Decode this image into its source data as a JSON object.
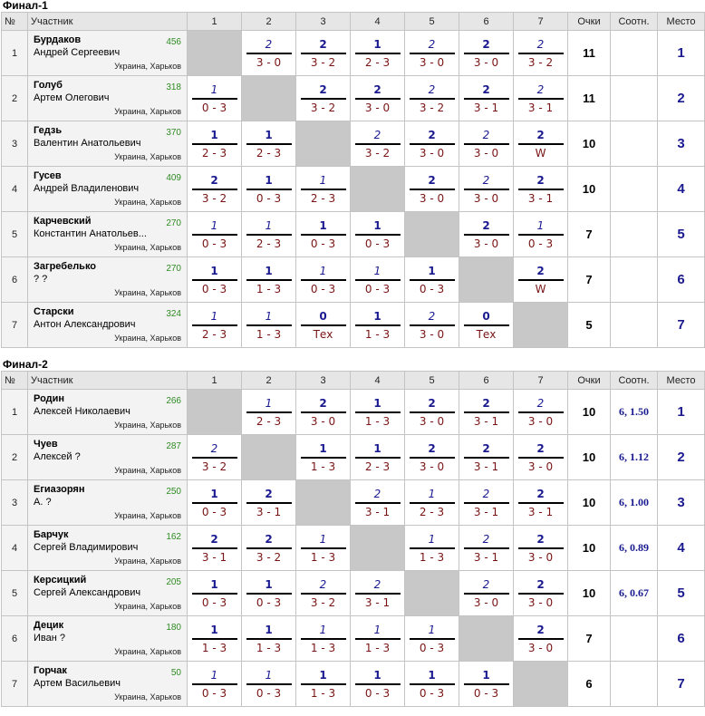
{
  "headers": {
    "num": "№",
    "player": "Участник",
    "cols": [
      "1",
      "2",
      "3",
      "4",
      "5",
      "6",
      "7"
    ],
    "points": "Очки",
    "ratio": "Соотн.",
    "place": "Место"
  },
  "groups": [
    {
      "title": "Финал-1",
      "rows": [
        {
          "num": "1",
          "last": "Бурдаков",
          "first": "Андрей Сергеевич",
          "rating": "456",
          "city": "Украина, Харьков",
          "points": "11",
          "ratio": "",
          "place": "1",
          "cells": [
            null,
            {
              "p": "2",
              "r": "3 - 0",
              "s": "i"
            },
            {
              "p": "2",
              "r": "3 - 2",
              "s": "b"
            },
            {
              "p": "1",
              "r": "2 - 3",
              "s": "b"
            },
            {
              "p": "2",
              "r": "3 - 0",
              "s": "i"
            },
            {
              "p": "2",
              "r": "3 - 0",
              "s": "b"
            },
            {
              "p": "2",
              "r": "3 - 2",
              "s": "i"
            }
          ]
        },
        {
          "num": "2",
          "last": "Голуб",
          "first": "Артем Олегович",
          "rating": "318",
          "city": "Украина, Харьков",
          "points": "11",
          "ratio": "",
          "place": "2",
          "cells": [
            {
              "p": "1",
              "r": "0 - 3",
              "s": "i"
            },
            null,
            {
              "p": "2",
              "r": "3 - 2",
              "s": "b"
            },
            {
              "p": "2",
              "r": "3 - 0",
              "s": "b"
            },
            {
              "p": "2",
              "r": "3 - 2",
              "s": "i"
            },
            {
              "p": "2",
              "r": "3 - 1",
              "s": "b"
            },
            {
              "p": "2",
              "r": "3 - 1",
              "s": "i"
            }
          ]
        },
        {
          "num": "3",
          "last": "Гедзь",
          "first": "Валентин Анатольевич",
          "rating": "370",
          "city": "Украина, Харьков",
          "points": "10",
          "ratio": "",
          "place": "3",
          "cells": [
            {
              "p": "1",
              "r": "2 - 3",
              "s": "b"
            },
            {
              "p": "1",
              "r": "2 - 3",
              "s": "b"
            },
            null,
            {
              "p": "2",
              "r": "3 - 2",
              "s": "i"
            },
            {
              "p": "2",
              "r": "3 - 0",
              "s": "b"
            },
            {
              "p": "2",
              "r": "3 - 0",
              "s": "i"
            },
            {
              "p": "2",
              "r": "W",
              "s": "b"
            }
          ]
        },
        {
          "num": "4",
          "last": "Гусев",
          "first": "Андрей Владиленович",
          "rating": "409",
          "city": "Украина, Харьков",
          "points": "10",
          "ratio": "",
          "place": "4",
          "cells": [
            {
              "p": "2",
              "r": "3 - 2",
              "s": "b"
            },
            {
              "p": "1",
              "r": "0 - 3",
              "s": "b"
            },
            {
              "p": "1",
              "r": "2 - 3",
              "s": "i"
            },
            null,
            {
              "p": "2",
              "r": "3 - 0",
              "s": "b"
            },
            {
              "p": "2",
              "r": "3 - 0",
              "s": "i"
            },
            {
              "p": "2",
              "r": "3 - 1",
              "s": "b"
            }
          ]
        },
        {
          "num": "5",
          "last": "Карчевский",
          "first": "Константин Анатольев...",
          "rating": "270",
          "city": "Украина, Харьков",
          "points": "7",
          "ratio": "",
          "place": "5",
          "cells": [
            {
              "p": "1",
              "r": "0 - 3",
              "s": "i"
            },
            {
              "p": "1",
              "r": "2 - 3",
              "s": "i"
            },
            {
              "p": "1",
              "r": "0 - 3",
              "s": "b"
            },
            {
              "p": "1",
              "r": "0 - 3",
              "s": "b"
            },
            null,
            {
              "p": "2",
              "r": "3 - 0",
              "s": "b"
            },
            {
              "p": "1",
              "r": "0 - 3",
              "s": "i"
            }
          ]
        },
        {
          "num": "6",
          "last": "Загребелько",
          "first": "? ?",
          "rating": "270",
          "city": "Украина, Харьков",
          "points": "7",
          "ratio": "",
          "place": "6",
          "cells": [
            {
              "p": "1",
              "r": "0 - 3",
              "s": "b"
            },
            {
              "p": "1",
              "r": "1 - 3",
              "s": "b"
            },
            {
              "p": "1",
              "r": "0 - 3",
              "s": "i"
            },
            {
              "p": "1",
              "r": "0 - 3",
              "s": "i"
            },
            {
              "p": "1",
              "r": "0 - 3",
              "s": "b"
            },
            null,
            {
              "p": "2",
              "r": "W",
              "s": "b"
            }
          ]
        },
        {
          "num": "7",
          "last": "Старски",
          "first": "Антон Александрович",
          "rating": "324",
          "city": "Украина, Харьков",
          "points": "5",
          "ratio": "",
          "place": "7",
          "cells": [
            {
              "p": "1",
              "r": "2 - 3",
              "s": "i"
            },
            {
              "p": "1",
              "r": "1 - 3",
              "s": "i"
            },
            {
              "p": "0",
              "r": "Тех",
              "s": "b"
            },
            {
              "p": "1",
              "r": "1 - 3",
              "s": "b"
            },
            {
              "p": "2",
              "r": "3 - 0",
              "s": "i"
            },
            {
              "p": "0",
              "r": "Тех",
              "s": "b"
            },
            null
          ]
        }
      ]
    },
    {
      "title": "Финал-2",
      "rows": [
        {
          "num": "1",
          "last": "Родин",
          "first": "Алексей Николаевич",
          "rating": "266",
          "city": "Украина, Харьков",
          "points": "10",
          "ratio": "6, 1.50",
          "place": "1",
          "cells": [
            null,
            {
              "p": "1",
              "r": "2 - 3",
              "s": "i"
            },
            {
              "p": "2",
              "r": "3 - 0",
              "s": "b"
            },
            {
              "p": "1",
              "r": "1 - 3",
              "s": "b"
            },
            {
              "p": "2",
              "r": "3 - 0",
              "s": "b"
            },
            {
              "p": "2",
              "r": "3 - 1",
              "s": "b"
            },
            {
              "p": "2",
              "r": "3 - 0",
              "s": "i"
            }
          ]
        },
        {
          "num": "2",
          "last": "Чуев",
          "first": "Алексей ?",
          "rating": "287",
          "city": "Украина, Харьков",
          "points": "10",
          "ratio": "6, 1.12",
          "place": "2",
          "cells": [
            {
              "p": "2",
              "r": "3 - 2",
              "s": "i"
            },
            null,
            {
              "p": "1",
              "r": "1 - 3",
              "s": "b"
            },
            {
              "p": "1",
              "r": "2 - 3",
              "s": "b"
            },
            {
              "p": "2",
              "r": "3 - 0",
              "s": "b"
            },
            {
              "p": "2",
              "r": "3 - 1",
              "s": "b"
            },
            {
              "p": "2",
              "r": "3 - 0",
              "s": "b"
            }
          ]
        },
        {
          "num": "3",
          "last": "Егиазорян",
          "first": "А. ?",
          "rating": "250",
          "city": "Украина, Харьков",
          "points": "10",
          "ratio": "6, 1.00",
          "place": "3",
          "cells": [
            {
              "p": "1",
              "r": "0 - 3",
              "s": "b"
            },
            {
              "p": "2",
              "r": "3 - 1",
              "s": "b"
            },
            null,
            {
              "p": "2",
              "r": "3 - 1",
              "s": "i"
            },
            {
              "p": "1",
              "r": "2 - 3",
              "s": "i"
            },
            {
              "p": "2",
              "r": "3 - 1",
              "s": "i"
            },
            {
              "p": "2",
              "r": "3 - 1",
              "s": "b"
            }
          ]
        },
        {
          "num": "4",
          "last": "Барчук",
          "first": "Сергей Владимирович",
          "rating": "162",
          "city": "Украина, Харьков",
          "points": "10",
          "ratio": "6, 0.89",
          "place": "4",
          "cells": [
            {
              "p": "2",
              "r": "3 - 1",
              "s": "b"
            },
            {
              "p": "2",
              "r": "3 - 2",
              "s": "b"
            },
            {
              "p": "1",
              "r": "1 - 3",
              "s": "i"
            },
            null,
            {
              "p": "1",
              "r": "1 - 3",
              "s": "i"
            },
            {
              "p": "2",
              "r": "3 - 1",
              "s": "i"
            },
            {
              "p": "2",
              "r": "3 - 0",
              "s": "b"
            }
          ]
        },
        {
          "num": "5",
          "last": "Керсицкий",
          "first": "Сергей Александрович",
          "rating": "205",
          "city": "Украина, Харьков",
          "points": "10",
          "ratio": "6, 0.67",
          "place": "5",
          "cells": [
            {
              "p": "1",
              "r": "0 - 3",
              "s": "b"
            },
            {
              "p": "1",
              "r": "0 - 3",
              "s": "b"
            },
            {
              "p": "2",
              "r": "3 - 2",
              "s": "i"
            },
            {
              "p": "2",
              "r": "3 - 1",
              "s": "i"
            },
            null,
            {
              "p": "2",
              "r": "3 - 0",
              "s": "i"
            },
            {
              "p": "2",
              "r": "3 - 0",
              "s": "b"
            }
          ]
        },
        {
          "num": "6",
          "last": "Децик",
          "first": "Иван ?",
          "rating": "180",
          "city": "Украина, Харьков",
          "points": "7",
          "ratio": "",
          "place": "6",
          "cells": [
            {
              "p": "1",
              "r": "1 - 3",
              "s": "b"
            },
            {
              "p": "1",
              "r": "1 - 3",
              "s": "b"
            },
            {
              "p": "1",
              "r": "1 - 3",
              "s": "i"
            },
            {
              "p": "1",
              "r": "1 - 3",
              "s": "i"
            },
            {
              "p": "1",
              "r": "0 - 3",
              "s": "i"
            },
            null,
            {
              "p": "2",
              "r": "3 - 0",
              "s": "b"
            }
          ]
        },
        {
          "num": "7",
          "last": "Горчак",
          "first": "Артем Васильевич",
          "rating": "50",
          "city": "Украина, Харьков",
          "points": "6",
          "ratio": "",
          "place": "7",
          "cells": [
            {
              "p": "1",
              "r": "0 - 3",
              "s": "i"
            },
            {
              "p": "1",
              "r": "0 - 3",
              "s": "i"
            },
            {
              "p": "1",
              "r": "1 - 3",
              "s": "b"
            },
            {
              "p": "1",
              "r": "0 - 3",
              "s": "b"
            },
            {
              "p": "1",
              "r": "0 - 3",
              "s": "b"
            },
            {
              "p": "1",
              "r": "0 - 3",
              "s": "b"
            },
            null
          ]
        }
      ]
    }
  ]
}
